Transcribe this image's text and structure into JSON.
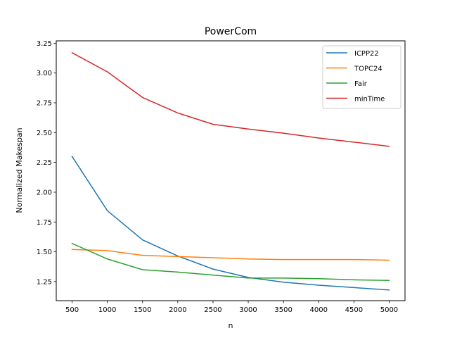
{
  "chart_data": {
    "type": "line",
    "title": "PowerCom",
    "xlabel": "n",
    "ylabel": "Normalized Makespan",
    "x": [
      500,
      1000,
      1500,
      2000,
      2500,
      3000,
      3500,
      4000,
      4500,
      5000
    ],
    "xticks": [
      "500",
      "1000",
      "1500",
      "2000",
      "2500",
      "3000",
      "3500",
      "4000",
      "4500",
      "5000"
    ],
    "yticks": [
      "1.25",
      "1.50",
      "1.75",
      "2.00",
      "2.25",
      "2.50",
      "2.75",
      "3.00",
      "3.25"
    ],
    "ytick_values": [
      1.25,
      1.5,
      1.75,
      2.0,
      2.25,
      2.5,
      2.75,
      3.0,
      3.25
    ],
    "xlim": [
      275,
      5225
    ],
    "ylim": [
      1.09,
      3.27
    ],
    "grid": false,
    "legend_position": "top-right",
    "series": [
      {
        "name": "ICPP22",
        "color": "#1f77b4",
        "values": [
          2.3,
          1.845,
          1.6,
          1.465,
          1.355,
          1.285,
          1.245,
          1.22,
          1.2,
          1.18
        ]
      },
      {
        "name": "TOPC24",
        "color": "#ff7f0e",
        "values": [
          1.52,
          1.51,
          1.47,
          1.46,
          1.45,
          1.44,
          1.435,
          1.435,
          1.435,
          1.43
        ]
      },
      {
        "name": "Fair",
        "color": "#2ca02c",
        "values": [
          1.57,
          1.44,
          1.35,
          1.33,
          1.305,
          1.28,
          1.28,
          1.275,
          1.265,
          1.26
        ]
      },
      {
        "name": "minTime",
        "color": "#d62728",
        "values": [
          3.17,
          3.01,
          2.795,
          2.665,
          2.57,
          2.53,
          2.495,
          2.455,
          2.42,
          2.385
        ]
      }
    ]
  }
}
